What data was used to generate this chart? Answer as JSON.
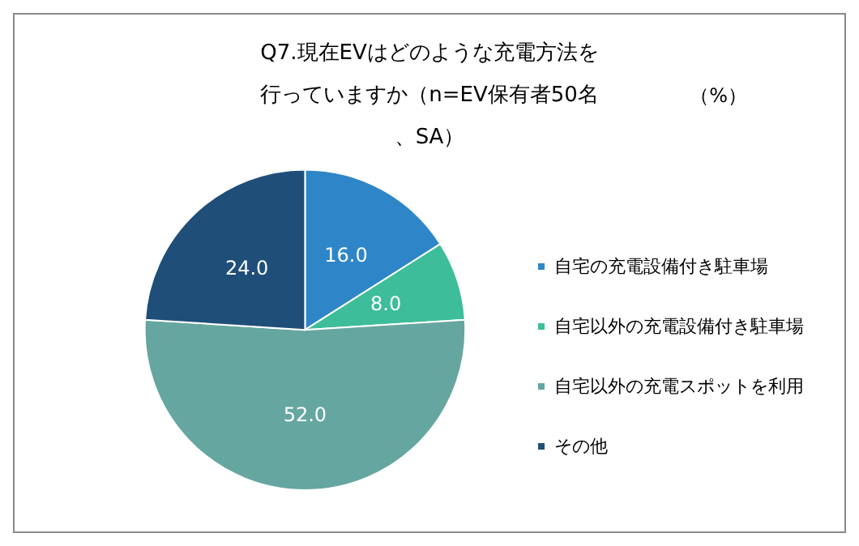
{
  "chart_data": {
    "type": "pie",
    "title": "Q7.現在EVはどのような充電方法を行っていますか（n=EV保有者50名、SA）",
    "annotations": [
      "（%）"
    ],
    "categories": [
      "自宅の充電設備付き駐車場",
      "自宅以外の充電設備付き駐車場",
      "自宅以外の充電スポットを利用",
      "その他"
    ],
    "values": [
      16,
      8,
      52,
      24
    ],
    "colors": [
      "#2e86c8",
      "#3dbd9a",
      "#66a6a0",
      "#1f4e79"
    ],
    "value_labels": [
      "16.0",
      "8.0",
      "52.0",
      "24.0"
    ],
    "legend": "right"
  }
}
